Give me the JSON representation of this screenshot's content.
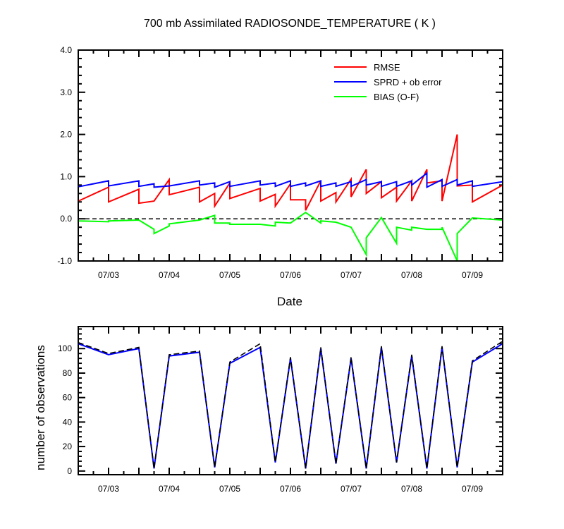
{
  "chart_data": [
    {
      "type": "line",
      "title": "700 mb Assimilated RADIOSONDE_TEMPERATURE ( K )",
      "xlabel": "Date",
      "ylabel": "",
      "xlim": [
        2.5,
        9.5
      ],
      "ylim": [
        -1.0,
        4.0
      ],
      "yticks": [
        -1.0,
        0.0,
        1.0,
        2.0,
        3.0,
        4.0
      ],
      "ytick_labels": [
        "-1.0",
        "0.0",
        "1.0",
        "2.0",
        "3.0",
        "4.0"
      ],
      "xticks": [
        3,
        4,
        5,
        6,
        7,
        8,
        9
      ],
      "xtick_labels": [
        "07/03",
        "07/04",
        "07/05",
        "07/06",
        "07/07",
        "07/08",
        "07/09"
      ],
      "reference_line": 0.0,
      "colors": {
        "rmse": "#ff0000",
        "sprd": "#0000ff",
        "bias": "#00ff00",
        "reference": "#000000"
      },
      "legend": [
        "RMSE",
        "SPRD + ob error",
        "BIAS (O-F)"
      ],
      "legend_position": "top-right",
      "series": [
        {
          "name": "RMSE",
          "color": "#ff0000",
          "x": [
            2.5,
            3.0,
            3.0,
            3.5,
            3.5,
            3.75,
            4.0,
            4.0,
            4.5,
            4.5,
            4.75,
            4.75,
            5.0,
            5.0,
            5.5,
            5.5,
            5.75,
            5.75,
            6.0,
            6.0,
            6.25,
            6.25,
            6.5,
            6.5,
            6.75,
            6.75,
            7.0,
            7.0,
            7.25,
            7.25,
            7.5,
            7.5,
            7.75,
            7.75,
            8.0,
            8.0,
            8.25,
            8.25,
            8.5,
            8.5,
            8.75,
            8.75,
            9.0,
            9.0,
            9.5
          ],
          "values": [
            0.42,
            0.75,
            0.4,
            0.7,
            0.37,
            0.42,
            0.93,
            0.57,
            0.75,
            0.4,
            0.6,
            0.3,
            0.85,
            0.48,
            0.72,
            0.42,
            0.58,
            0.3,
            0.83,
            0.45,
            0.45,
            0.2,
            0.9,
            0.42,
            0.62,
            0.4,
            0.94,
            0.52,
            1.17,
            0.6,
            0.88,
            0.5,
            0.75,
            0.42,
            0.9,
            0.42,
            1.17,
            0.85,
            0.9,
            0.42,
            2.0,
            0.78,
            0.8,
            0.4,
            0.8
          ]
        },
        {
          "name": "SPRD + ob error",
          "color": "#0000ff",
          "x": [
            2.5,
            3.0,
            3.0,
            3.5,
            3.5,
            3.75,
            3.75,
            4.0,
            4.5,
            4.5,
            4.75,
            4.75,
            5.0,
            5.0,
            5.5,
            5.5,
            5.75,
            5.75,
            6.0,
            6.0,
            6.25,
            6.25,
            6.5,
            6.5,
            6.75,
            6.75,
            7.0,
            7.0,
            7.25,
            7.25,
            7.5,
            7.5,
            7.75,
            7.75,
            8.0,
            8.0,
            8.25,
            8.25,
            8.5,
            8.5,
            8.75,
            8.75,
            9.0,
            9.0,
            9.5
          ],
          "values": [
            0.76,
            0.9,
            0.78,
            0.9,
            0.77,
            0.83,
            0.75,
            0.78,
            0.9,
            0.8,
            0.85,
            0.75,
            0.88,
            0.77,
            0.9,
            0.8,
            0.85,
            0.77,
            0.9,
            0.77,
            0.85,
            0.78,
            0.9,
            0.77,
            0.85,
            0.77,
            0.88,
            0.77,
            0.93,
            0.8,
            0.88,
            0.77,
            0.88,
            0.77,
            0.9,
            0.8,
            1.08,
            0.75,
            0.93,
            0.77,
            0.93,
            0.8,
            0.9,
            0.77,
            0.88
          ]
        },
        {
          "name": "BIAS (O-F)",
          "color": "#00ff00",
          "x": [
            2.5,
            3.0,
            3.0,
            3.5,
            3.75,
            3.75,
            4.0,
            4.0,
            4.5,
            4.75,
            4.75,
            5.0,
            5.0,
            5.5,
            5.75,
            5.75,
            6.0,
            6.25,
            6.5,
            6.5,
            6.75,
            7.0,
            7.0,
            7.25,
            7.25,
            7.5,
            7.75,
            7.75,
            8.0,
            8.0,
            8.25,
            8.5,
            8.5,
            8.75,
            8.75,
            9.0,
            9.5
          ],
          "values": [
            -0.05,
            -0.07,
            -0.05,
            -0.03,
            -0.25,
            -0.35,
            -0.17,
            -0.12,
            -0.03,
            0.08,
            -0.1,
            -0.1,
            -0.13,
            -0.13,
            -0.17,
            -0.08,
            -0.1,
            0.15,
            -0.1,
            -0.05,
            -0.08,
            -0.2,
            -0.2,
            -0.85,
            -0.45,
            0.03,
            -0.58,
            -0.2,
            -0.27,
            -0.2,
            -0.25,
            -0.25,
            -0.2,
            -1.0,
            -0.35,
            0.02,
            -0.03
          ]
        }
      ]
    },
    {
      "type": "line",
      "title": "",
      "xlabel": "",
      "ylabel": "number of observations",
      "xlim": [
        2.5,
        9.5
      ],
      "ylim": [
        -3,
        118
      ],
      "yticks": [
        0,
        20,
        40,
        60,
        80,
        100
      ],
      "ytick_labels": [
        "0",
        "20",
        "40",
        "60",
        "80",
        "100"
      ],
      "xticks": [
        3,
        4,
        5,
        6,
        7,
        8,
        9
      ],
      "xtick_labels": [
        "07/03",
        "07/04",
        "07/05",
        "07/06",
        "07/07",
        "07/08",
        "07/09"
      ],
      "series": [
        {
          "name": "observations (solid)",
          "color": "#0000ff",
          "style": "solid",
          "x": [
            2.5,
            3.0,
            3.5,
            3.75,
            4.0,
            4.5,
            4.75,
            5.0,
            5.5,
            5.75,
            6.0,
            6.25,
            6.5,
            6.75,
            7.0,
            7.25,
            7.5,
            7.75,
            8.0,
            8.25,
            8.5,
            8.75,
            9.0,
            9.5
          ],
          "values": [
            104,
            95,
            100,
            2,
            94,
            97,
            3,
            88,
            101,
            7,
            92,
            2,
            100,
            6,
            92,
            2,
            101,
            7,
            94,
            2,
            101,
            3,
            89,
            104
          ]
        },
        {
          "name": "observations (dashed)",
          "color": "#000000",
          "style": "dashed",
          "x": [
            2.5,
            3.0,
            3.5,
            3.75,
            4.0,
            4.5,
            4.75,
            5.0,
            5.5,
            5.75,
            6.0,
            6.25,
            6.5,
            6.75,
            7.0,
            7.25,
            7.5,
            7.75,
            8.0,
            8.25,
            8.5,
            8.75,
            9.0,
            9.5
          ],
          "values": [
            105,
            96,
            101,
            2,
            95,
            98,
            3,
            89,
            104,
            7,
            93,
            2,
            101,
            6,
            93,
            2,
            102,
            7,
            95,
            2,
            102,
            3,
            90,
            106
          ]
        }
      ]
    }
  ]
}
